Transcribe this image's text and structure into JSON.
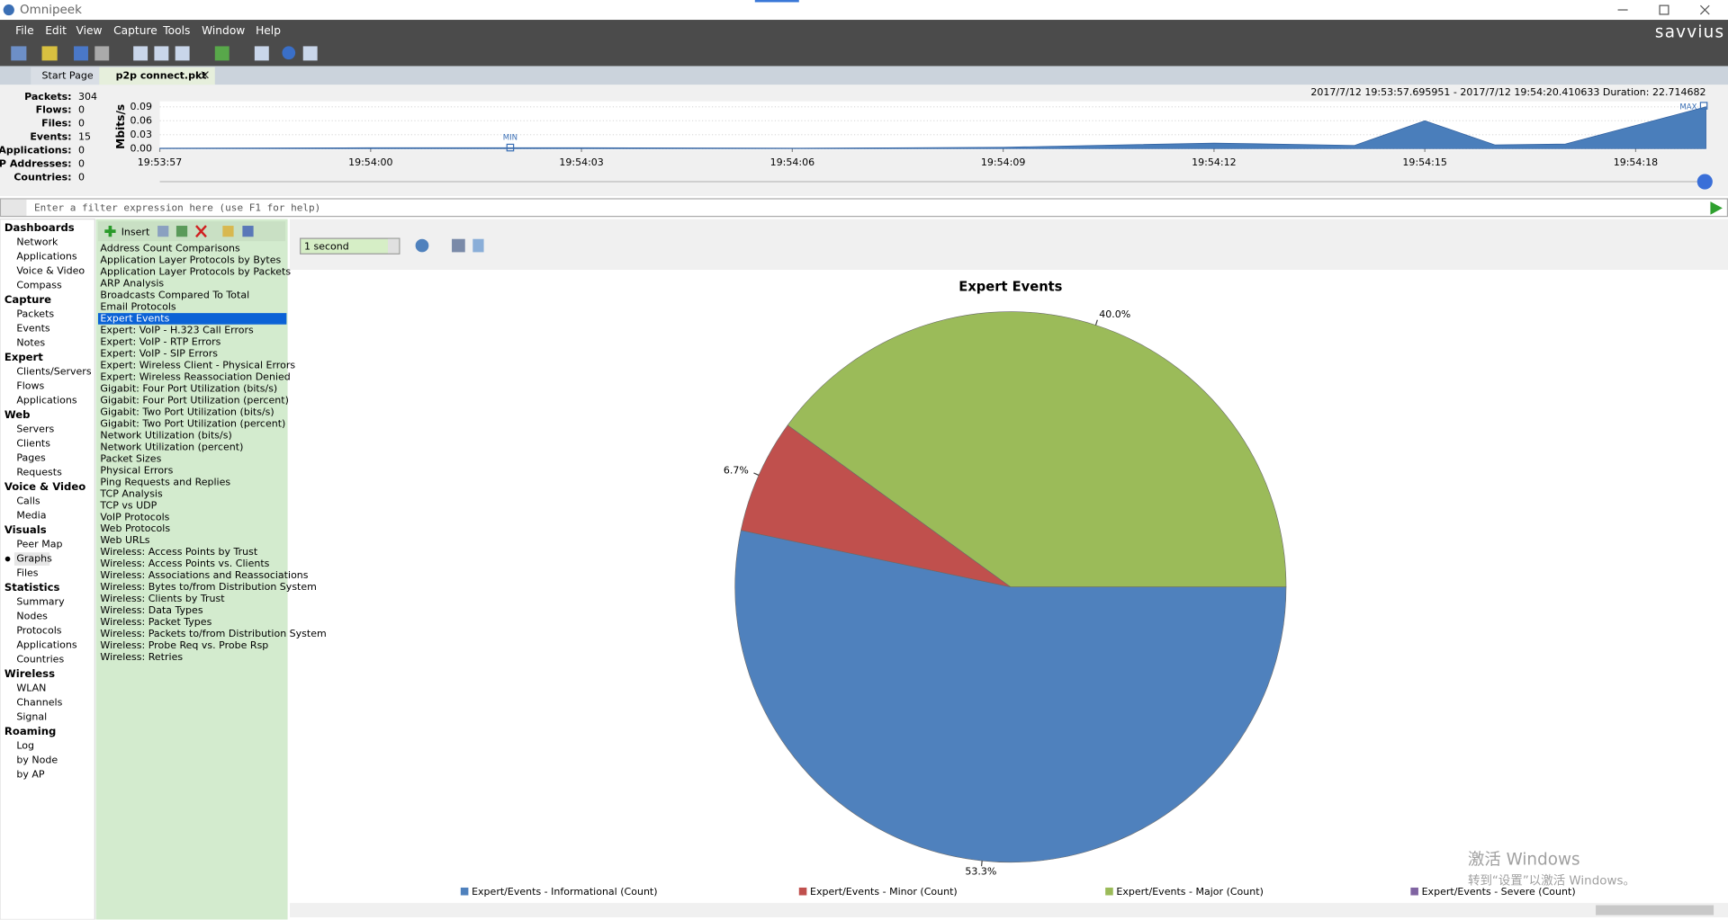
{
  "window": {
    "title": "Omnipeek",
    "brand": "savvius"
  },
  "menu": [
    "File",
    "Edit",
    "View",
    "Capture",
    "Tools",
    "Window",
    "Help"
  ],
  "tabs": [
    "Start Page",
    "p2p connect.pkt"
  ],
  "summary": [
    {
      "label": "Packets:",
      "value": 304
    },
    {
      "label": "Flows:",
      "value": 0
    },
    {
      "label": "Files:",
      "value": 0
    },
    {
      "label": "Events:",
      "value": 15
    },
    {
      "label": "Applications:",
      "value": 0
    },
    {
      "label": "IP Addresses:",
      "value": 0
    },
    {
      "label": "Countries:",
      "value": 0
    }
  ],
  "filter": {
    "placeholder": "Enter a filter expression here (use F1 for help)"
  },
  "nav": [
    {
      "group": "Dashboards",
      "items": [
        "Network",
        "Applications",
        "Voice & Video",
        "Compass"
      ]
    },
    {
      "group": "Capture",
      "items": [
        "Packets",
        "Events",
        "Notes"
      ]
    },
    {
      "group": "Expert",
      "items": [
        "Clients/Servers",
        "Flows",
        "Applications"
      ]
    },
    {
      "group": "Web",
      "items": [
        "Servers",
        "Clients",
        "Pages",
        "Requests"
      ]
    },
    {
      "group": "Voice & Video",
      "items": [
        "Calls",
        "Media"
      ]
    },
    {
      "group": "Visuals",
      "items": [
        "Peer Map",
        "Graphs",
        "Files"
      ]
    },
    {
      "group": "Statistics",
      "items": [
        "Summary",
        "Nodes",
        "Protocols",
        "Applications",
        "Countries"
      ]
    },
    {
      "group": "Wireless",
      "items": [
        "WLAN",
        "Channels",
        "Signal"
      ]
    },
    {
      "group": "Roaming",
      "items": [
        "Log",
        "by Node",
        "by AP"
      ]
    }
  ],
  "nav_selected": "Graphs",
  "graphs": {
    "insert": "Insert",
    "selected": "Expert Events",
    "items": [
      "Address Count Comparisons",
      "Application Layer Protocols by Bytes",
      "Application Layer Protocols by Packets",
      "ARP Analysis",
      "Broadcasts Compared To Total",
      "Email Protocols",
      "Expert Events",
      "Expert: VoIP - H.323 Call Errors",
      "Expert: VoIP - RTP Errors",
      "Expert: VoIP - SIP Errors",
      "Expert: Wireless Client - Physical Errors",
      "Expert: Wireless Reassociation Denied",
      "Gigabit: Four Port Utilization (bits/s)",
      "Gigabit: Four Port Utilization (percent)",
      "Gigabit: Two Port Utilization (bits/s)",
      "Gigabit: Two Port Utilization (percent)",
      "Network Utilization (bits/s)",
      "Network Utilization (percent)",
      "Packet Sizes",
      "Physical Errors",
      "Ping Requests and Replies",
      "TCP Analysis",
      "TCP vs UDP",
      "VoIP Protocols",
      "Web Protocols",
      "Web URLs",
      "Wireless: Access Points by Trust",
      "Wireless: Access Points vs. Clients",
      "Wireless: Associations and Reassociations",
      "Wireless: Bytes to/from Distribution System",
      "Wireless: Clients by Trust",
      "Wireless: Data Types",
      "Wireless: Packet Types",
      "Wireless: Packets to/from Distribution System",
      "Wireless: Probe Req vs. Probe Rsp",
      "Wireless: Retries"
    ]
  },
  "interval": "1 second",
  "watermark": [
    "激活 Windows",
    "转到“设置”以激活 Windows。"
  ],
  "chart_data": [
    {
      "type": "area",
      "subtitle": "2017/7/12 19:53:57.695951 - 2017/7/12 19:54:20.410633  Duration: 22.714682",
      "y_label": "Mbits/s",
      "color": "#4a7ebb",
      "x": [
        0,
        3,
        6,
        9,
        12,
        15,
        17,
        18,
        19,
        20,
        22
      ],
      "values": [
        0.001,
        0.002,
        0.002,
        0.001,
        0.003,
        0.012,
        0.007,
        0.06,
        0.008,
        0.01,
        0.09
      ],
      "xlim": [
        0,
        22
      ],
      "ylim": [
        0,
        0.09
      ],
      "xticks": [
        {
          "value": 0,
          "label": "19:53:57"
        },
        {
          "value": 3,
          "label": "19:54:00"
        },
        {
          "value": 6,
          "label": "19:54:03"
        },
        {
          "value": 9,
          "label": "19:54:06"
        },
        {
          "value": 12,
          "label": "19:54:09"
        },
        {
          "value": 15,
          "label": "19:54:12"
        },
        {
          "value": 18,
          "label": "19:54:15"
        },
        {
          "value": 21,
          "label": "19:54:18"
        }
      ],
      "yticks": [
        0.09,
        0.06,
        0.03,
        {
          "value": 0,
          "label": "0.00"
        }
      ],
      "annotations": [
        "MIN",
        "MAX"
      ]
    },
    {
      "type": "pie",
      "title": "Expert Events",
      "categories": [
        "Expert/Events - Informational (Count)",
        "Expert/Events - Minor (Count)",
        "Expert/Events - Major (Count)",
        "Expert/Events - Severe (Count)"
      ],
      "values": [
        53.3,
        6.7,
        40.0,
        0
      ],
      "value_labels": [
        "53.3%",
        "6.7%",
        "40.0%",
        null
      ],
      "colors": [
        "#4f81bd",
        "#c0504d",
        "#9bbb59",
        "#8064a2"
      ]
    }
  ]
}
